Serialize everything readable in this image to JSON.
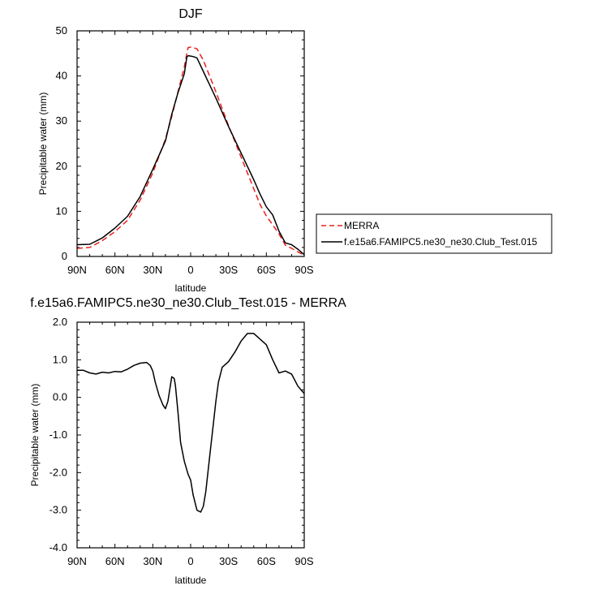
{
  "chart_data": [
    {
      "type": "line",
      "title": "DJF",
      "xlabel": "latitude",
      "ylabel": "Precipitable water (mm)",
      "xlim": [
        90,
        -90
      ],
      "ylim": [
        0,
        50
      ],
      "xticks": [
        90,
        60,
        30,
        0,
        -30,
        -60,
        -90
      ],
      "xtick_labels": [
        "90N",
        "60N",
        "30N",
        "0",
        "30S",
        "60S",
        "90S"
      ],
      "yticks": [
        0,
        10,
        20,
        30,
        40,
        50
      ],
      "ytick_labels": [
        "0",
        "10",
        "20",
        "30",
        "40",
        "50"
      ],
      "legend_position": "right",
      "series": [
        {
          "name": "MERRA",
          "color": "#e8201c",
          "dash": "dashed",
          "x": [
            90,
            80,
            70,
            60,
            50,
            40,
            30,
            20,
            15,
            10,
            5,
            3,
            2,
            0,
            -2,
            -5,
            -10,
            -20,
            -30,
            -40,
            -50,
            -55,
            -60,
            -65,
            -70,
            -75,
            -80,
            -85,
            -90
          ],
          "y": [
            1.8,
            2.0,
            3.5,
            5.5,
            8.0,
            12.5,
            18.5,
            26.0,
            31.0,
            36.5,
            42.0,
            45.0,
            46.3,
            46.4,
            46.3,
            46.0,
            43.5,
            36.5,
            29.0,
            22.0,
            15.0,
            11.5,
            9.0,
            7.0,
            5.0,
            2.5,
            1.8,
            1.0,
            0.3
          ]
        },
        {
          "name": "f.e15a6.FAMIPC5.ne30_ne30.Club_Test.015",
          "color": "#000000",
          "dash": "solid",
          "x": [
            90,
            80,
            70,
            60,
            50,
            40,
            30,
            20,
            15,
            10,
            5,
            3,
            2,
            0,
            -2,
            -5,
            -10,
            -20,
            -30,
            -40,
            -50,
            -55,
            -60,
            -65,
            -70,
            -75,
            -80,
            -85,
            -90
          ],
          "y": [
            2.6,
            2.7,
            4.1,
            6.3,
            8.9,
            13.3,
            19.3,
            25.6,
            31.5,
            36.3,
            40.5,
            44.2,
            44.5,
            44.4,
            44.3,
            44.0,
            41.0,
            35.1,
            28.8,
            22.9,
            17.0,
            13.8,
            11.0,
            9.2,
            5.6,
            3.0,
            2.6,
            1.6,
            0.4
          ]
        }
      ]
    },
    {
      "type": "line",
      "title": "f.e15a6.FAMIPC5.ne30_ne30.Club_Test.015 - MERRA",
      "xlabel": "latitude",
      "ylabel": "Precipitable water (mm)",
      "xlim": [
        90,
        -90
      ],
      "ylim": [
        -4,
        2
      ],
      "xticks": [
        90,
        60,
        30,
        0,
        -30,
        -60,
        -90
      ],
      "xtick_labels": [
        "90N",
        "60N",
        "30N",
        "0",
        "30S",
        "60S",
        "90S"
      ],
      "yticks": [
        -4,
        -3,
        -2,
        -1,
        0,
        1,
        2
      ],
      "ytick_labels": [
        "-4.0",
        "-3.0",
        "-2.0",
        "-1.0",
        "0.0",
        "1.0",
        "2.0"
      ],
      "series": [
        {
          "color": "#000000",
          "dash": "solid",
          "x": [
            90,
            85,
            80,
            75,
            70,
            65,
            60,
            55,
            50,
            45,
            40,
            35,
            32,
            30,
            28,
            25,
            22,
            20,
            18,
            15,
            13,
            12,
            10,
            8,
            5,
            2,
            0,
            -2,
            -5,
            -8,
            -10,
            -12,
            -15,
            -18,
            -20,
            -22,
            -25,
            -30,
            -35,
            -40,
            -45,
            -50,
            -55,
            -60,
            -65,
            -70,
            -75,
            -80,
            -85,
            -90
          ],
          "y": [
            0.72,
            0.72,
            0.65,
            0.62,
            0.67,
            0.65,
            0.69,
            0.68,
            0.75,
            0.85,
            0.91,
            0.93,
            0.85,
            0.7,
            0.4,
            0.05,
            -0.2,
            -0.3,
            -0.1,
            0.55,
            0.5,
            0.3,
            -0.4,
            -1.2,
            -1.7,
            -2.05,
            -2.2,
            -2.6,
            -3.0,
            -3.05,
            -2.9,
            -2.5,
            -1.6,
            -0.7,
            -0.1,
            0.4,
            0.8,
            0.95,
            1.2,
            1.5,
            1.7,
            1.7,
            1.55,
            1.4,
            1.0,
            0.65,
            0.7,
            0.62,
            0.3,
            0.1
          ]
        }
      ]
    }
  ]
}
